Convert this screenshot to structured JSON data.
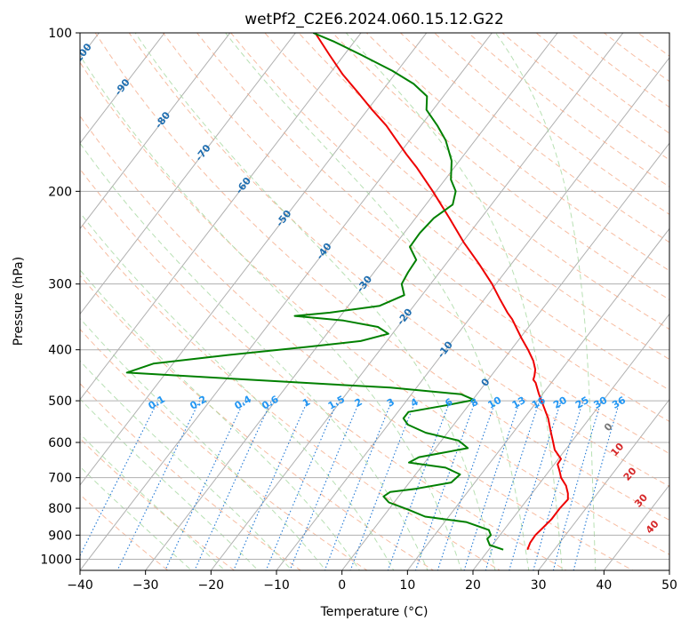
{
  "chart_data": {
    "type": "skew-t",
    "title": "wetPf2_C2E6.2024.060.15.12.G22",
    "xlabel": "Temperature (°C)",
    "ylabel": "Pressure (hPa)",
    "xlim": [
      -40,
      50
    ],
    "ylim": [
      1050,
      100
    ],
    "y_scale": "log",
    "x_ticks": [
      -40,
      -30,
      -20,
      -10,
      0,
      10,
      20,
      30,
      40,
      50
    ],
    "y_ticks": [
      100,
      200,
      300,
      400,
      500,
      600,
      700,
      800,
      900,
      1000
    ],
    "grid": true,
    "colors": {
      "temperature": "#ee0000",
      "dewpoint": "#008000",
      "isotherm_grid": "#b0b0b0",
      "dry_adiabat": "#f4a582",
      "moist_adiabat": "#a6d8a0",
      "mixing_ratio": "#1f77d4",
      "mixing_ratio_label": "#2196f3",
      "isotherm_label": "#1f6eb0",
      "theta_e_label": "#d62728"
    },
    "series": [
      {
        "name": "",
        "role": "temperature",
        "points": [
          {
            "p": 959,
            "t": 25.9
          },
          {
            "p": 930,
            "t": 25.5
          },
          {
            "p": 900,
            "t": 25.4
          },
          {
            "p": 870,
            "t": 25.7
          },
          {
            "p": 840,
            "t": 26.0
          },
          {
            "p": 800,
            "t": 26.0
          },
          {
            "p": 770,
            "t": 26.2
          },
          {
            "p": 750,
            "t": 25.5
          },
          {
            "p": 725,
            "t": 24.3
          },
          {
            "p": 700,
            "t": 22.6
          },
          {
            "p": 680,
            "t": 21.6
          },
          {
            "p": 660,
            "t": 20.5
          },
          {
            "p": 645,
            "t": 20.4
          },
          {
            "p": 620,
            "t": 18.4
          },
          {
            "p": 595,
            "t": 17.0
          },
          {
            "p": 570,
            "t": 15.5
          },
          {
            "p": 540,
            "t": 13.7
          },
          {
            "p": 510,
            "t": 11.4
          },
          {
            "p": 485,
            "t": 9.4
          },
          {
            "p": 462,
            "t": 7.6
          },
          {
            "p": 456,
            "t": 6.9
          },
          {
            "p": 448,
            "t": 6.6
          },
          {
            "p": 436,
            "t": 6.0
          },
          {
            "p": 420,
            "t": 4.7
          },
          {
            "p": 400,
            "t": 2.6
          },
          {
            "p": 380,
            "t": 0.2
          },
          {
            "p": 350,
            "t": -3.4
          },
          {
            "p": 340,
            "t": -4.9
          },
          {
            "p": 320,
            "t": -7.7
          },
          {
            "p": 300,
            "t": -10.6
          },
          {
            "p": 275,
            "t": -14.9
          },
          {
            "p": 250,
            "t": -19.8
          },
          {
            "p": 225,
            "t": -24.8
          },
          {
            "p": 200,
            "t": -30.5
          },
          {
            "p": 180,
            "t": -35.8
          },
          {
            "p": 170,
            "t": -38.9
          },
          {
            "p": 160,
            "t": -42.0
          },
          {
            "p": 150,
            "t": -45.3
          },
          {
            "p": 140,
            "t": -49.3
          },
          {
            "p": 130,
            "t": -53.4
          },
          {
            "p": 120,
            "t": -57.9
          },
          {
            "p": 110,
            "t": -62.3
          },
          {
            "p": 100,
            "t": -67.0
          }
        ]
      },
      {
        "name": "",
        "role": "dewpoint",
        "points": [
          {
            "p": 959,
            "t": 22.2
          },
          {
            "p": 940,
            "t": 19.6
          },
          {
            "p": 915,
            "t": 18.5
          },
          {
            "p": 900,
            "t": 18.6
          },
          {
            "p": 880,
            "t": 17.7
          },
          {
            "p": 850,
            "t": 13.3
          },
          {
            "p": 830,
            "t": 6.4
          },
          {
            "p": 805,
            "t": 3.0
          },
          {
            "p": 780,
            "t": -0.8
          },
          {
            "p": 760,
            "t": -2.3
          },
          {
            "p": 745,
            "t": -1.8
          },
          {
            "p": 735,
            "t": 1.7
          },
          {
            "p": 715,
            "t": 6.4
          },
          {
            "p": 690,
            "t": 6.8
          },
          {
            "p": 670,
            "t": 3.8
          },
          {
            "p": 655,
            "t": -2.4
          },
          {
            "p": 640,
            "t": -1.5
          },
          {
            "p": 615,
            "t": 4.9
          },
          {
            "p": 595,
            "t": 2.6
          },
          {
            "p": 575,
            "t": -3.3
          },
          {
            "p": 555,
            "t": -7.0
          },
          {
            "p": 540,
            "t": -8.4
          },
          {
            "p": 525,
            "t": -8.4
          },
          {
            "p": 510,
            "t": -3.4
          },
          {
            "p": 498,
            "t": 0.2
          },
          {
            "p": 486,
            "t": -2.4
          },
          {
            "p": 472,
            "t": -14.0
          },
          {
            "p": 462,
            "t": -28.0
          },
          {
            "p": 442,
            "t": -56.0
          },
          {
            "p": 425,
            "t": -53.0
          },
          {
            "p": 410,
            "t": -43.0
          },
          {
            "p": 395,
            "t": -31.5
          },
          {
            "p": 385,
            "t": -24.0
          },
          {
            "p": 373,
            "t": -20.6
          },
          {
            "p": 362,
            "t": -23.0
          },
          {
            "p": 352,
            "t": -29.0
          },
          {
            "p": 345,
            "t": -37.0
          },
          {
            "p": 340,
            "t": -32.0
          },
          {
            "p": 330,
            "t": -25.2
          },
          {
            "p": 315,
            "t": -22.7
          },
          {
            "p": 300,
            "t": -24.4
          },
          {
            "p": 285,
            "t": -24.8
          },
          {
            "p": 270,
            "t": -25.0
          },
          {
            "p": 255,
            "t": -27.5
          },
          {
            "p": 240,
            "t": -27.6
          },
          {
            "p": 225,
            "t": -27.2
          },
          {
            "p": 212,
            "t": -25.9
          },
          {
            "p": 200,
            "t": -27.0
          },
          {
            "p": 190,
            "t": -29.1
          },
          {
            "p": 175,
            "t": -31.2
          },
          {
            "p": 160,
            "t": -34.5
          },
          {
            "p": 150,
            "t": -37.5
          },
          {
            "p": 140,
            "t": -41.0
          },
          {
            "p": 132,
            "t": -42.5
          },
          {
            "p": 125,
            "t": -46.0
          },
          {
            "p": 118,
            "t": -50.8
          },
          {
            "p": 110,
            "t": -57.5
          },
          {
            "p": 104,
            "t": -63.0
          },
          {
            "p": 100,
            "t": -67.3
          }
        ]
      }
    ],
    "isotherm_labels": [
      "-100",
      "-90",
      "-80",
      "-70",
      "-60",
      "-50",
      "-40",
      "-30",
      "-20",
      "-10",
      "0"
    ],
    "mixing_ratio_labels": [
      "0.1",
      "0.2",
      "0.4",
      "0.6",
      "1",
      "1.5",
      "2",
      "3",
      "4",
      "6",
      "8",
      "10",
      "13",
      "16",
      "20",
      "25",
      "30",
      "36"
    ],
    "theta_e_labels": [
      "10",
      "20",
      "30",
      "40"
    ]
  }
}
